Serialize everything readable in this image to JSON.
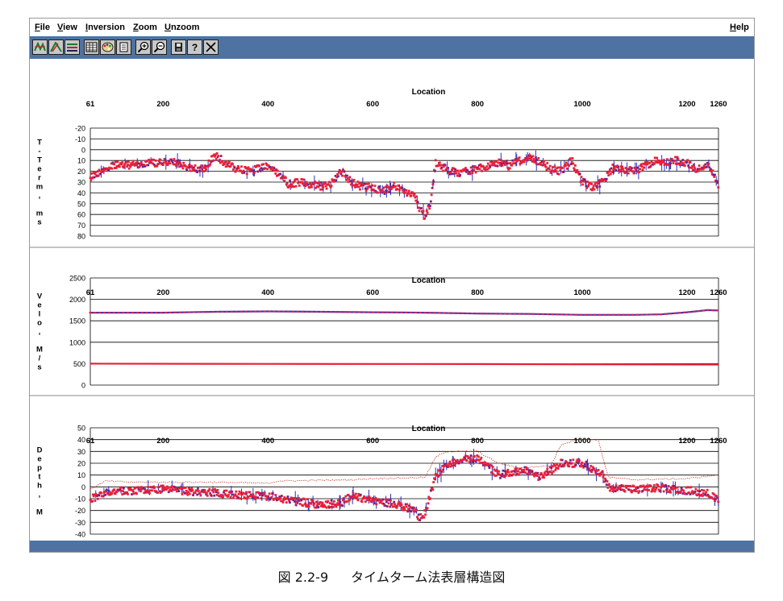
{
  "menus": {
    "file": {
      "label": "File",
      "u": "F",
      "rest": "ile"
    },
    "view": {
      "label": "View",
      "u": "V",
      "rest": "iew"
    },
    "inversion": {
      "label": "Inversion",
      "u": "I",
      "rest": "nversion"
    },
    "zoom": {
      "label": "Zoom",
      "u": "Z",
      "rest": "oom"
    },
    "unzoom": {
      "label": "Unzoom",
      "u": "U",
      "rest": "nzoom"
    },
    "help": {
      "label": "Help",
      "u": "H",
      "rest": "elp"
    }
  },
  "toolbar": {
    "icons": [
      "wave-picks-icon",
      "layers-icon",
      "lines-icon",
      "table-icon",
      "palette-icon",
      "document-icon",
      "zoom-in-icon",
      "zoom-out-icon",
      "save-icon",
      "help-icon",
      "close-icon"
    ],
    "help_glyph": "?",
    "colors": {
      "bar": "#4e73a3",
      "button": "#c8c8c8"
    }
  },
  "caption": {
    "figure_no": "図 2.2-9",
    "title": "タイムターム法表層構造図"
  },
  "chart_data": [
    {
      "type": "scatter",
      "title": "",
      "xlabel": "Location",
      "ylabel": "T-Term, ms",
      "xlim": [
        61,
        1260
      ],
      "x_ticks": [
        61,
        200,
        400,
        600,
        800,
        1000,
        1200,
        1260
      ],
      "ylim": [
        -20,
        80
      ],
      "y_inverted": true,
      "y_ticks": [
        -20,
        -10,
        0,
        10,
        20,
        30,
        40,
        50,
        60,
        70,
        80
      ],
      "grid": "horizontal",
      "colors": {
        "primary": "#e8203a",
        "secondary": "#2b2fc0"
      },
      "series": [
        {
          "x": [
            61,
            100,
            140,
            180,
            220,
            260,
            280,
            300,
            320,
            340,
            360,
            380,
            400,
            420,
            440,
            460,
            480,
            500,
            520,
            540,
            560,
            580,
            600,
            620,
            640,
            660,
            680,
            690,
            700,
            710,
            720,
            740,
            760,
            780,
            800,
            820,
            840,
            860,
            880,
            900,
            920,
            940,
            960,
            980,
            1000,
            1020,
            1040,
            1060,
            1080,
            1100,
            1120,
            1140,
            1160,
            1180,
            1200,
            1220,
            1240,
            1260
          ],
          "values": [
            25,
            15,
            14,
            12,
            12,
            18,
            17,
            5,
            13,
            18,
            20,
            18,
            15,
            22,
            32,
            30,
            32,
            34,
            32,
            20,
            30,
            35,
            35,
            38,
            33,
            38,
            42,
            55,
            62,
            50,
            12,
            18,
            22,
            20,
            18,
            15,
            12,
            15,
            10,
            8,
            12,
            18,
            20,
            10,
            30,
            35,
            30,
            15,
            18,
            20,
            15,
            10,
            12,
            10,
            12,
            18,
            15,
            32
          ]
        }
      ]
    },
    {
      "type": "line",
      "title": "",
      "xlabel": "Location",
      "ylabel": "Velo, M/s",
      "xlim": [
        61,
        1260
      ],
      "x_ticks": [
        61,
        200,
        400,
        600,
        800,
        1000,
        1200,
        1260
      ],
      "ylim": [
        0,
        2500
      ],
      "y_ticks": [
        0,
        500,
        1000,
        1500,
        2000,
        2500
      ],
      "grid": "horizontal",
      "series": [
        {
          "x": [
            61,
            200,
            300,
            400,
            500,
            600,
            700,
            800,
            900,
            1000,
            1100,
            1150,
            1200,
            1240,
            1260
          ],
          "values": [
            1690,
            1690,
            1710,
            1720,
            1710,
            1700,
            1690,
            1670,
            1660,
            1640,
            1640,
            1650,
            1700,
            1750,
            1740
          ],
          "color": "#3a3ac8"
        },
        {
          "x": [
            61,
            400,
            800,
            1260
          ],
          "values": [
            500,
            495,
            490,
            480
          ],
          "color": "#e8203a"
        }
      ]
    },
    {
      "type": "scatter",
      "title": "",
      "xlabel": "Location",
      "ylabel": "Depth, M",
      "xlim": [
        61,
        1260
      ],
      "x_ticks": [
        61,
        200,
        400,
        600,
        800,
        1000,
        1200,
        1260
      ],
      "ylim": [
        -40,
        50
      ],
      "y_ticks": [
        -40,
        -30,
        -20,
        -10,
        0,
        10,
        20,
        30,
        40,
        50
      ],
      "grid": "horizontal",
      "colors": {
        "primary": "#e8203a",
        "secondary": "#2b2fc0"
      },
      "series": [
        {
          "x": [
            61,
            100,
            150,
            200,
            250,
            300,
            350,
            400,
            450,
            500,
            540,
            560,
            600,
            640,
            680,
            690,
            700,
            720,
            740,
            760,
            800,
            840,
            860,
            900,
            920,
            960,
            1000,
            1040,
            1050,
            1080,
            1100,
            1150,
            1200,
            1240,
            1260
          ],
          "values": [
            -10,
            -4,
            -3,
            -2,
            -4,
            -5,
            -7,
            -8,
            -12,
            -15,
            -14,
            -7,
            -12,
            -14,
            -20,
            -27,
            -22,
            8,
            18,
            22,
            25,
            10,
            12,
            14,
            8,
            20,
            20,
            10,
            0,
            -2,
            -2,
            -1,
            -3,
            -5,
            -12
          ]
        },
        {
          "x": [
            61,
            90,
            140,
            300,
            400,
            420,
            560,
            600,
            700,
            720,
            740,
            760,
            800,
            840,
            880,
            940,
            960,
            990,
            1030,
            1050,
            1100,
            1200,
            1260
          ],
          "values": [
            -2,
            5,
            4,
            4,
            3,
            5,
            6,
            7,
            8,
            25,
            30,
            30,
            30,
            20,
            16,
            18,
            36,
            40,
            40,
            8,
            6,
            7,
            10
          ],
          "line": "thin-dotted"
        }
      ]
    }
  ]
}
